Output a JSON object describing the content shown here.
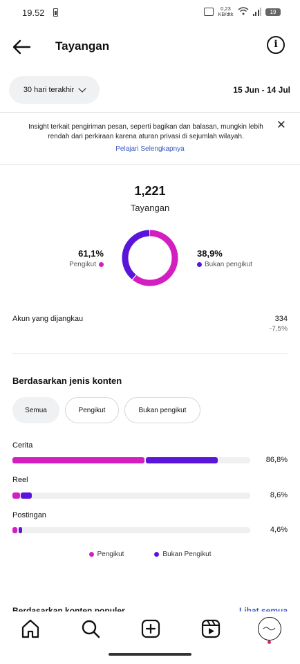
{
  "status_bar": {
    "time": "19.52",
    "net_rate": "0,23",
    "net_unit": "KB/dtk",
    "battery": "19"
  },
  "header": {
    "title": "Tayangan"
  },
  "filter": {
    "period_label": "30 hari terakhir",
    "date_range": "15 Jun - 14 Jul"
  },
  "notice": {
    "text": "Insight terkait pengiriman pesan, seperti bagikan dan balasan, mungkin lebih rendah dari perkiraan karena aturan privasi di sejumlah wilayah.",
    "link": "Pelajari Selengkapnya"
  },
  "overview": {
    "total": "1,221",
    "label": "Tayangan",
    "followers_pct": "61,1%",
    "followers_label": "Pengikut",
    "non_followers_pct": "38,9%",
    "non_followers_label": "Bukan pengikut"
  },
  "reach": {
    "label": "Akun yang dijangkau",
    "value": "334",
    "change": "-7,5%"
  },
  "content_type": {
    "title": "Berdasarkan jenis konten",
    "chips": [
      "Semua",
      "Pengikut",
      "Bukan pengikut"
    ],
    "rows": [
      {
        "label": "Cerita",
        "pct": "86,8%"
      },
      {
        "label": "Reel",
        "pct": "8,6%"
      },
      {
        "label": "Postingan",
        "pct": "4,6%"
      }
    ],
    "legend": [
      "Pengikut",
      "Bukan Pengikut"
    ]
  },
  "popular": {
    "title": "Berdasarkan konten populer",
    "link": "Lihat semua"
  },
  "colors": {
    "follower": "#d31ec2",
    "non_follower": "#5a15db"
  },
  "chart_data": [
    {
      "type": "pie",
      "categories": [
        "Pengikut",
        "Bukan pengikut"
      ],
      "values": [
        61.1,
        38.9
      ],
      "title": "Tayangan"
    },
    {
      "type": "bar",
      "categories": [
        "Cerita",
        "Reel",
        "Postingan"
      ],
      "series": [
        {
          "name": "Pengikut",
          "values": [
            56.0,
            3.5,
            2.5
          ]
        },
        {
          "name": "Bukan Pengikut",
          "values": [
            30.8,
            5.1,
            2.1
          ]
        }
      ],
      "ylim": [
        0,
        100
      ]
    }
  ]
}
